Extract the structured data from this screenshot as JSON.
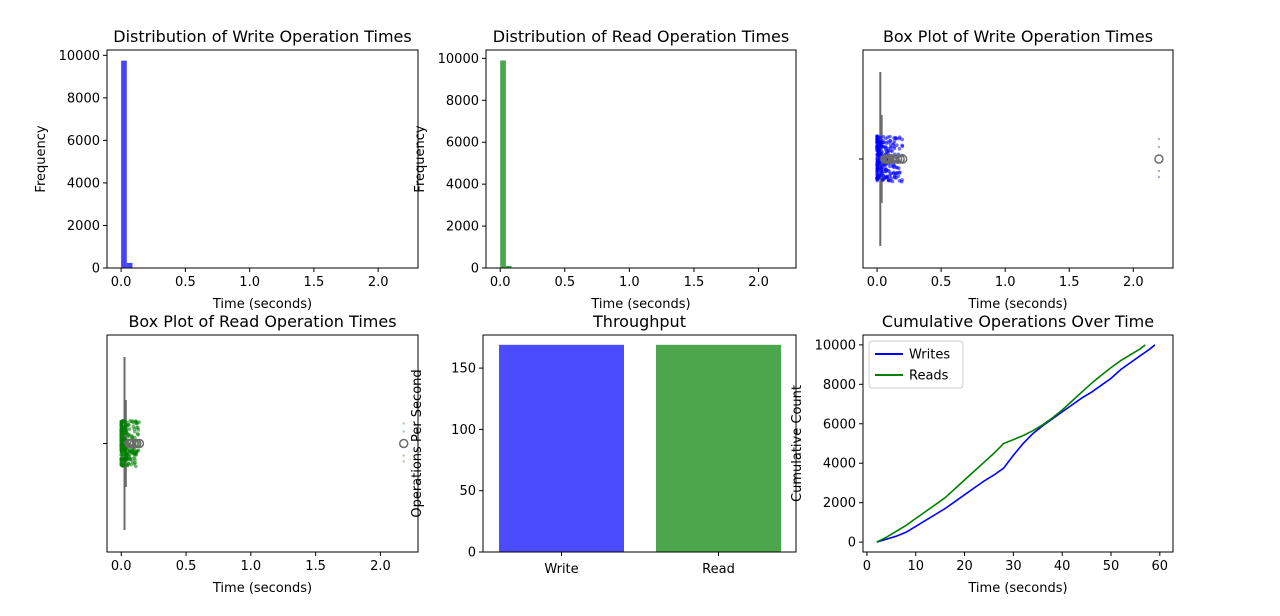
{
  "chart_data": [
    {
      "type": "bar",
      "title": "Distribution of Write Operation Times",
      "xlabel": "Time (seconds)",
      "ylabel": "Frequency",
      "xlim": [
        -0.11,
        2.31
      ],
      "ylim": [
        0,
        10250
      ],
      "xticks": [
        0.0,
        0.5,
        1.0,
        1.5,
        2.0
      ],
      "xtick_labels": [
        "0.0",
        "0.5",
        "1.0",
        "1.5",
        "2.0"
      ],
      "yticks": [
        0,
        2000,
        4000,
        6000,
        8000,
        10000
      ],
      "ytick_labels": [
        "0",
        "2000",
        "4000",
        "6000",
        "8000",
        "10000"
      ],
      "bin_width": 0.044,
      "bins": [
        {
          "x": 0.0,
          "value": 9750
        },
        {
          "x": 0.044,
          "value": 240
        }
      ],
      "color": "#4444ff"
    },
    {
      "type": "bar",
      "title": "Distribution of Read Operation Times",
      "xlabel": "Time (seconds)",
      "ylabel": "Frequency",
      "xlim": [
        -0.11,
        2.29
      ],
      "ylim": [
        0,
        10400
      ],
      "xticks": [
        0.0,
        0.5,
        1.0,
        1.5,
        2.0
      ],
      "xtick_labels": [
        "0.0",
        "0.5",
        "1.0",
        "1.5",
        "2.0"
      ],
      "yticks": [
        0,
        2000,
        4000,
        6000,
        8000,
        10000
      ],
      "ytick_labels": [
        "0",
        "2000",
        "4000",
        "6000",
        "8000",
        "10000"
      ],
      "bin_width": 0.044,
      "bins": [
        {
          "x": 0.0,
          "value": 9900
        },
        {
          "x": 0.044,
          "value": 100
        }
      ],
      "color": "#4ca64c"
    },
    {
      "type": "box",
      "title": "Box Plot of Write Operation Times",
      "xlabel": "Time (seconds)",
      "xlim": [
        -0.11,
        2.31
      ],
      "xticks": [
        0.0,
        0.5,
        1.0,
        1.5,
        2.0
      ],
      "xtick_labels": [
        "0.0",
        "0.5",
        "1.0",
        "1.5",
        "2.0"
      ],
      "box": {
        "whisker_low": 0.0,
        "q1": 0.02,
        "median": 0.025,
        "q3": 0.03,
        "whisker_high": 0.05
      },
      "outliers": [
        0.06,
        0.07,
        0.08,
        0.09,
        0.1,
        0.12,
        0.14,
        0.16,
        0.18,
        0.2,
        2.2
      ],
      "strip_range": [
        0.0,
        0.2
      ],
      "strip_points": [
        2.2
      ],
      "point_color": "#0000ff"
    },
    {
      "type": "box",
      "title": "Box Plot of Read Operation Times",
      "xlabel": "Time (seconds)",
      "xlim": [
        -0.11,
        2.29
      ],
      "xticks": [
        0.0,
        0.5,
        1.0,
        1.5,
        2.0
      ],
      "xtick_labels": [
        "0.0",
        "0.5",
        "1.0",
        "1.5",
        "2.0"
      ],
      "box": {
        "whisker_low": 0.0,
        "q1": 0.02,
        "median": 0.025,
        "q3": 0.03,
        "whisker_high": 0.05
      },
      "outliers": [
        0.06,
        0.07,
        0.08,
        0.1,
        0.12,
        0.14,
        2.18
      ],
      "strip_range": [
        0.0,
        0.14
      ],
      "strip_points": [
        2.18
      ],
      "point_color": "#008000"
    },
    {
      "type": "bar",
      "title": "Throughput",
      "xlabel": "",
      "ylabel": "Operations Per Second",
      "categories": [
        "Write",
        "Read"
      ],
      "values": [
        169,
        169
      ],
      "colors": [
        "#4c4cff",
        "#4ca64c"
      ],
      "ylim": [
        0,
        177
      ],
      "yticks": [
        0,
        50,
        100,
        150
      ],
      "ytick_labels": [
        "0",
        "50",
        "100",
        "150"
      ]
    },
    {
      "type": "line",
      "title": "Cumulative Operations Over Time",
      "xlabel": "Time (seconds)",
      "ylabel": "Cumulative Count",
      "xlim": [
        -0.8,
        62.7
      ],
      "ylim": [
        -500,
        10500
      ],
      "xticks": [
        0,
        10,
        20,
        30,
        40,
        50,
        60
      ],
      "xtick_labels": [
        "0",
        "10",
        "20",
        "30",
        "40",
        "50",
        "60"
      ],
      "yticks": [
        0,
        2000,
        4000,
        6000,
        8000,
        10000
      ],
      "ytick_labels": [
        "0",
        "2000",
        "4000",
        "6000",
        "8000",
        "10000"
      ],
      "legend": "top-left",
      "series": [
        {
          "name": "Writes",
          "color": "#0000ff",
          "x": [
            2,
            4,
            6,
            8,
            10,
            12,
            14,
            16,
            18,
            20,
            22,
            24,
            26,
            28,
            30,
            32,
            34,
            36,
            38,
            40,
            42,
            44,
            46,
            48,
            50,
            52,
            54,
            56,
            58,
            59
          ],
          "y": [
            0,
            150,
            300,
            500,
            800,
            1100,
            1400,
            1700,
            2050,
            2400,
            2750,
            3100,
            3400,
            3750,
            4400,
            5000,
            5500,
            5900,
            6250,
            6600,
            6950,
            7300,
            7600,
            7950,
            8300,
            8750,
            9100,
            9450,
            9800,
            10000
          ]
        },
        {
          "name": "Reads",
          "color": "#008000",
          "x": [
            2,
            4,
            6,
            8,
            10,
            12,
            14,
            16,
            18,
            20,
            22,
            24,
            26,
            28,
            30,
            32,
            34,
            36,
            38,
            40,
            42,
            44,
            46,
            48,
            50,
            52,
            54,
            56,
            57
          ],
          "y": [
            0,
            250,
            550,
            850,
            1200,
            1550,
            1900,
            2250,
            2700,
            3150,
            3600,
            4050,
            4500,
            5000,
            5200,
            5400,
            5650,
            5950,
            6300,
            6700,
            7150,
            7600,
            8050,
            8450,
            8850,
            9200,
            9500,
            9800,
            10000
          ]
        }
      ]
    }
  ]
}
